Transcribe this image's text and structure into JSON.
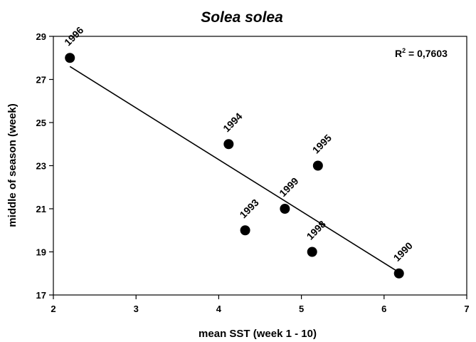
{
  "chart_data": {
    "type": "scatter",
    "title": "Solea solea",
    "xlabel": "mean SST (week 1 - 10)",
    "ylabel": "middle of season (week)",
    "xlim": [
      2,
      7
    ],
    "ylim": [
      17,
      29
    ],
    "x_ticks": [
      "2",
      "3",
      "4",
      "5",
      "6",
      "7"
    ],
    "y_ticks": [
      "17",
      "19",
      "21",
      "23",
      "25",
      "27",
      "29"
    ],
    "grid": false,
    "points": [
      {
        "label": "1996",
        "x": 2.2,
        "y": 28
      },
      {
        "label": "1994",
        "x": 4.12,
        "y": 24
      },
      {
        "label": "1995",
        "x": 5.2,
        "y": 23
      },
      {
        "label": "1999",
        "x": 4.8,
        "y": 21
      },
      {
        "label": "1993",
        "x": 4.32,
        "y": 20
      },
      {
        "label": "1998",
        "x": 5.13,
        "y": 19
      },
      {
        "label": "1990",
        "x": 6.18,
        "y": 18
      }
    ],
    "trendline": {
      "x": [
        2.2,
        6.18
      ],
      "y": [
        27.6,
        18.05
      ]
    },
    "annotation": {
      "r2_prefix": "R",
      "r2_exp": "2",
      "r2_value": " = 0,7603"
    }
  }
}
